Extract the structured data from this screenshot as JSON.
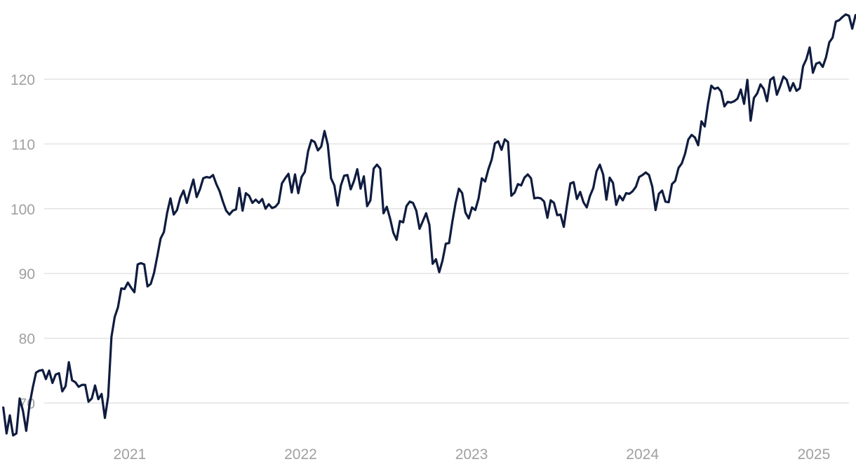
{
  "chart_data": {
    "type": "line",
    "x_unit": "date",
    "xlim": [
      "2020-03-30",
      "2025-04-01"
    ],
    "ylim": [
      65,
      131
    ],
    "grid": "horizontal",
    "legend": "none",
    "y_ticks": [
      {
        "value": 70,
        "label": "70"
      },
      {
        "value": 80,
        "label": "80"
      },
      {
        "value": 90,
        "label": "90"
      },
      {
        "value": 100,
        "label": "100"
      },
      {
        "value": 110,
        "label": "110"
      },
      {
        "value": 120,
        "label": "120"
      }
    ],
    "x_ticks": [
      {
        "value": "2021-01-01",
        "label": "2021"
      },
      {
        "value": "2022-01-01",
        "label": "2022"
      },
      {
        "value": "2023-01-01",
        "label": "2023"
      },
      {
        "value": "2024-01-01",
        "label": "2024"
      },
      {
        "value": "2025-01-01",
        "label": "2025"
      }
    ],
    "colors": {
      "line": "#0f1c3f",
      "grid": "#e3e3e3",
      "tick_text": "#a0a0a0"
    },
    "series": [
      {
        "points": [
          [
            "2020-04-06",
            69.3
          ],
          [
            "2020-04-13",
            65.3
          ],
          [
            "2020-04-20",
            68.1
          ],
          [
            "2020-04-27",
            65.0
          ],
          [
            "2020-05-04",
            65.3
          ],
          [
            "2020-05-11",
            70.7
          ],
          [
            "2020-05-18",
            68.8
          ],
          [
            "2020-05-25",
            65.7
          ],
          [
            "2020-06-01",
            69.7
          ],
          [
            "2020-06-08",
            72.4
          ],
          [
            "2020-06-15",
            74.7
          ],
          [
            "2020-06-22",
            75.0
          ],
          [
            "2020-06-29",
            75.1
          ],
          [
            "2020-07-06",
            73.7
          ],
          [
            "2020-07-13",
            75.0
          ],
          [
            "2020-07-20",
            73.1
          ],
          [
            "2020-07-27",
            74.4
          ],
          [
            "2020-08-03",
            74.6
          ],
          [
            "2020-08-10",
            71.8
          ],
          [
            "2020-08-17",
            72.6
          ],
          [
            "2020-08-24",
            76.3
          ],
          [
            "2020-08-31",
            73.5
          ],
          [
            "2020-09-07",
            73.2
          ],
          [
            "2020-09-14",
            72.5
          ],
          [
            "2020-09-21",
            72.8
          ],
          [
            "2020-09-28",
            72.8
          ],
          [
            "2020-10-05",
            70.2
          ],
          [
            "2020-10-12",
            70.7
          ],
          [
            "2020-10-19",
            72.7
          ],
          [
            "2020-10-26",
            70.6
          ],
          [
            "2020-11-02",
            71.4
          ],
          [
            "2020-11-09",
            67.7
          ],
          [
            "2020-11-16",
            71.0
          ],
          [
            "2020-11-23",
            80.2
          ],
          [
            "2020-11-30",
            83.3
          ],
          [
            "2020-12-07",
            84.8
          ],
          [
            "2020-12-14",
            87.7
          ],
          [
            "2020-12-21",
            87.6
          ],
          [
            "2020-12-28",
            88.6
          ],
          [
            "2021-01-04",
            87.8
          ],
          [
            "2021-01-11",
            87.1
          ],
          [
            "2021-01-18",
            91.4
          ],
          [
            "2021-01-25",
            91.6
          ],
          [
            "2021-02-01",
            91.4
          ],
          [
            "2021-02-08",
            88.0
          ],
          [
            "2021-02-15",
            88.4
          ],
          [
            "2021-02-22",
            90.1
          ],
          [
            "2021-03-01",
            92.7
          ],
          [
            "2021-03-08",
            95.4
          ],
          [
            "2021-03-15",
            96.4
          ],
          [
            "2021-03-22",
            99.4
          ],
          [
            "2021-03-29",
            101.6
          ],
          [
            "2021-04-05",
            99.1
          ],
          [
            "2021-04-12",
            99.8
          ],
          [
            "2021-04-19",
            101.7
          ],
          [
            "2021-04-26",
            102.8
          ],
          [
            "2021-05-03",
            100.9
          ],
          [
            "2021-05-10",
            102.8
          ],
          [
            "2021-05-17",
            104.5
          ],
          [
            "2021-05-24",
            101.8
          ],
          [
            "2021-05-31",
            103.0
          ],
          [
            "2021-06-07",
            104.7
          ],
          [
            "2021-06-14",
            104.9
          ],
          [
            "2021-06-21",
            104.8
          ],
          [
            "2021-06-28",
            105.2
          ],
          [
            "2021-07-05",
            103.8
          ],
          [
            "2021-07-12",
            102.7
          ],
          [
            "2021-07-19",
            101.1
          ],
          [
            "2021-07-26",
            99.7
          ],
          [
            "2021-08-02",
            99.1
          ],
          [
            "2021-08-09",
            99.7
          ],
          [
            "2021-08-16",
            99.9
          ],
          [
            "2021-08-23",
            103.2
          ],
          [
            "2021-08-30",
            99.7
          ],
          [
            "2021-09-06",
            102.4
          ],
          [
            "2021-09-13",
            102.0
          ],
          [
            "2021-09-20",
            100.9
          ],
          [
            "2021-09-27",
            101.4
          ],
          [
            "2021-10-04",
            100.9
          ],
          [
            "2021-10-11",
            101.5
          ],
          [
            "2021-10-18",
            100.0
          ],
          [
            "2021-10-25",
            100.7
          ],
          [
            "2021-11-01",
            100.1
          ],
          [
            "2021-11-08",
            100.3
          ],
          [
            "2021-11-15",
            100.9
          ],
          [
            "2021-11-22",
            103.9
          ],
          [
            "2021-11-29",
            104.7
          ],
          [
            "2021-12-06",
            105.4
          ],
          [
            "2021-12-13",
            102.5
          ],
          [
            "2021-12-20",
            105.3
          ],
          [
            "2021-12-27",
            102.4
          ],
          [
            "2022-01-03",
            104.9
          ],
          [
            "2022-01-10",
            105.7
          ],
          [
            "2022-01-17",
            108.9
          ],
          [
            "2022-01-24",
            110.6
          ],
          [
            "2022-01-31",
            110.3
          ],
          [
            "2022-02-07",
            109.0
          ],
          [
            "2022-02-14",
            109.6
          ],
          [
            "2022-02-21",
            112.0
          ],
          [
            "2022-02-28",
            109.9
          ],
          [
            "2022-03-07",
            104.7
          ],
          [
            "2022-03-14",
            103.6
          ],
          [
            "2022-03-21",
            100.5
          ],
          [
            "2022-03-28",
            103.6
          ],
          [
            "2022-04-04",
            105.1
          ],
          [
            "2022-04-11",
            105.2
          ],
          [
            "2022-04-18",
            103.0
          ],
          [
            "2022-04-25",
            104.3
          ],
          [
            "2022-05-02",
            106.1
          ],
          [
            "2022-05-09",
            103.1
          ],
          [
            "2022-05-16",
            105.0
          ],
          [
            "2022-05-23",
            100.4
          ],
          [
            "2022-05-30",
            101.3
          ],
          [
            "2022-06-06",
            106.2
          ],
          [
            "2022-06-13",
            106.8
          ],
          [
            "2022-06-20",
            106.2
          ],
          [
            "2022-06-27",
            99.3
          ],
          [
            "2022-07-04",
            100.3
          ],
          [
            "2022-07-11",
            98.5
          ],
          [
            "2022-07-18",
            96.3
          ],
          [
            "2022-07-25",
            95.2
          ],
          [
            "2022-08-01",
            98.1
          ],
          [
            "2022-08-08",
            97.9
          ],
          [
            "2022-08-15",
            100.4
          ],
          [
            "2022-08-22",
            101.1
          ],
          [
            "2022-08-29",
            100.9
          ],
          [
            "2022-09-05",
            99.7
          ],
          [
            "2022-09-12",
            96.9
          ],
          [
            "2022-09-19",
            98.1
          ],
          [
            "2022-09-26",
            99.3
          ],
          [
            "2022-10-03",
            97.5
          ],
          [
            "2022-10-10",
            91.5
          ],
          [
            "2022-10-17",
            92.2
          ],
          [
            "2022-10-24",
            90.2
          ],
          [
            "2022-10-31",
            92.0
          ],
          [
            "2022-11-07",
            94.6
          ],
          [
            "2022-11-14",
            94.7
          ],
          [
            "2022-11-21",
            98.0
          ],
          [
            "2022-11-28",
            100.9
          ],
          [
            "2022-12-05",
            103.1
          ],
          [
            "2022-12-12",
            102.4
          ],
          [
            "2022-12-19",
            99.4
          ],
          [
            "2022-12-26",
            98.5
          ],
          [
            "2023-01-02",
            100.2
          ],
          [
            "2023-01-09",
            99.8
          ],
          [
            "2023-01-16",
            101.6
          ],
          [
            "2023-01-23",
            104.7
          ],
          [
            "2023-01-30",
            104.2
          ],
          [
            "2023-02-06",
            106.1
          ],
          [
            "2023-02-13",
            107.6
          ],
          [
            "2023-02-20",
            110.1
          ],
          [
            "2023-02-27",
            110.4
          ],
          [
            "2023-03-06",
            109.1
          ],
          [
            "2023-03-13",
            110.7
          ],
          [
            "2023-03-20",
            110.3
          ],
          [
            "2023-03-27",
            102.0
          ],
          [
            "2023-04-03",
            102.5
          ],
          [
            "2023-04-10",
            103.8
          ],
          [
            "2023-04-17",
            103.6
          ],
          [
            "2023-04-24",
            104.8
          ],
          [
            "2023-05-01",
            105.3
          ],
          [
            "2023-05-08",
            104.7
          ],
          [
            "2023-05-15",
            101.6
          ],
          [
            "2023-05-22",
            101.7
          ],
          [
            "2023-05-29",
            101.6
          ],
          [
            "2023-06-05",
            101.1
          ],
          [
            "2023-06-12",
            98.6
          ],
          [
            "2023-06-19",
            101.3
          ],
          [
            "2023-06-26",
            100.9
          ],
          [
            "2023-07-03",
            99.0
          ],
          [
            "2023-07-10",
            99.1
          ],
          [
            "2023-07-17",
            97.2
          ],
          [
            "2023-07-24",
            100.7
          ],
          [
            "2023-07-31",
            103.9
          ],
          [
            "2023-08-07",
            104.1
          ],
          [
            "2023-08-14",
            101.5
          ],
          [
            "2023-08-21",
            102.6
          ],
          [
            "2023-08-28",
            101.0
          ],
          [
            "2023-09-04",
            100.2
          ],
          [
            "2023-09-11",
            102.0
          ],
          [
            "2023-09-18",
            103.2
          ],
          [
            "2023-09-25",
            105.8
          ],
          [
            "2023-10-02",
            106.8
          ],
          [
            "2023-10-09",
            105.3
          ],
          [
            "2023-10-16",
            101.4
          ],
          [
            "2023-10-23",
            104.8
          ],
          [
            "2023-10-30",
            104.0
          ],
          [
            "2023-11-06",
            100.6
          ],
          [
            "2023-11-13",
            102.0
          ],
          [
            "2023-11-20",
            101.3
          ],
          [
            "2023-11-27",
            102.4
          ],
          [
            "2023-12-04",
            102.3
          ],
          [
            "2023-12-11",
            102.7
          ],
          [
            "2023-12-18",
            103.4
          ],
          [
            "2023-12-25",
            104.9
          ],
          [
            "2024-01-01",
            105.2
          ],
          [
            "2024-01-08",
            105.6
          ],
          [
            "2024-01-15",
            105.2
          ],
          [
            "2024-01-22",
            103.4
          ],
          [
            "2024-01-29",
            99.8
          ],
          [
            "2024-02-05",
            102.3
          ],
          [
            "2024-02-12",
            102.8
          ],
          [
            "2024-02-19",
            101.1
          ],
          [
            "2024-02-26",
            101.0
          ],
          [
            "2024-03-04",
            103.8
          ],
          [
            "2024-03-11",
            104.3
          ],
          [
            "2024-03-18",
            106.3
          ],
          [
            "2024-03-25",
            107.0
          ],
          [
            "2024-04-01",
            108.5
          ],
          [
            "2024-04-08",
            110.7
          ],
          [
            "2024-04-15",
            111.4
          ],
          [
            "2024-04-22",
            111.0
          ],
          [
            "2024-04-29",
            109.8
          ],
          [
            "2024-05-06",
            113.5
          ],
          [
            "2024-05-13",
            112.7
          ],
          [
            "2024-05-20",
            116.2
          ],
          [
            "2024-05-27",
            119.0
          ],
          [
            "2024-06-03",
            118.5
          ],
          [
            "2024-06-10",
            118.7
          ],
          [
            "2024-06-17",
            118.1
          ],
          [
            "2024-06-24",
            115.8
          ],
          [
            "2024-07-01",
            116.5
          ],
          [
            "2024-07-08",
            116.4
          ],
          [
            "2024-07-15",
            116.6
          ],
          [
            "2024-07-22",
            117.0
          ],
          [
            "2024-07-29",
            118.4
          ],
          [
            "2024-08-05",
            116.2
          ],
          [
            "2024-08-12",
            119.9
          ],
          [
            "2024-08-19",
            113.6
          ],
          [
            "2024-08-26",
            117.1
          ],
          [
            "2024-09-02",
            117.8
          ],
          [
            "2024-09-09",
            119.2
          ],
          [
            "2024-09-16",
            118.5
          ],
          [
            "2024-09-23",
            116.6
          ],
          [
            "2024-09-30",
            119.9
          ],
          [
            "2024-10-07",
            120.3
          ],
          [
            "2024-10-14",
            117.6
          ],
          [
            "2024-10-21",
            118.9
          ],
          [
            "2024-10-28",
            120.4
          ],
          [
            "2024-11-04",
            119.9
          ],
          [
            "2024-11-11",
            118.2
          ],
          [
            "2024-11-18",
            119.4
          ],
          [
            "2024-11-25",
            118.2
          ],
          [
            "2024-12-02",
            118.6
          ],
          [
            "2024-12-09",
            122.0
          ],
          [
            "2024-12-16",
            123.1
          ],
          [
            "2024-12-23",
            124.9
          ],
          [
            "2024-12-30",
            121.0
          ],
          [
            "2025-01-06",
            122.4
          ],
          [
            "2025-01-13",
            122.6
          ],
          [
            "2025-01-20",
            121.9
          ],
          [
            "2025-01-27",
            123.4
          ],
          [
            "2025-02-03",
            125.7
          ],
          [
            "2025-02-10",
            126.4
          ],
          [
            "2025-02-17",
            128.9
          ],
          [
            "2025-02-24",
            129.1
          ],
          [
            "2025-03-03",
            129.6
          ],
          [
            "2025-03-10",
            130.0
          ],
          [
            "2025-03-17",
            129.8
          ],
          [
            "2025-03-24",
            127.8
          ],
          [
            "2025-03-31",
            129.9
          ],
          [
            "2025-04-07",
            129.4
          ]
        ]
      }
    ]
  }
}
